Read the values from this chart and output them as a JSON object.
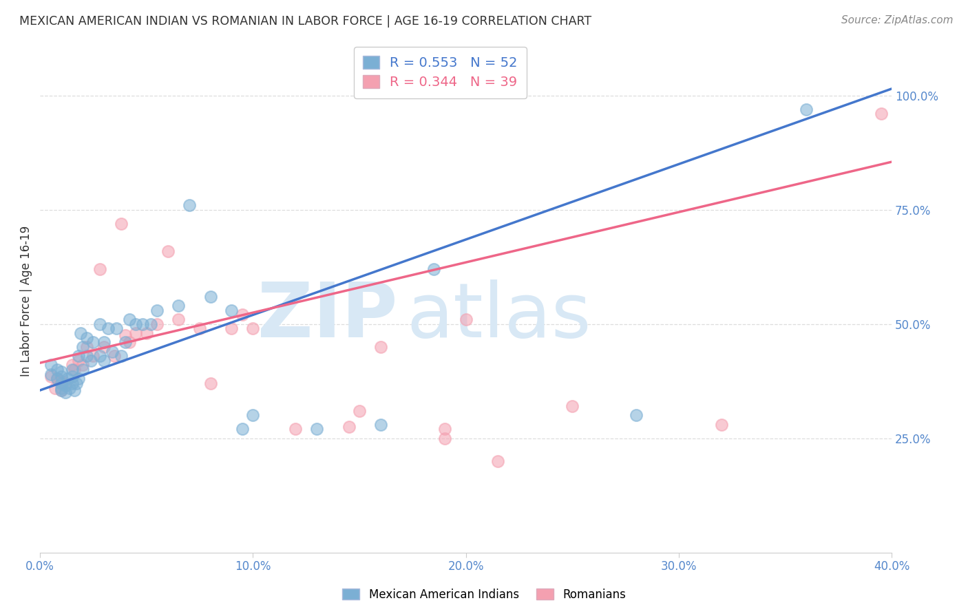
{
  "title": "MEXICAN AMERICAN INDIAN VS ROMANIAN IN LABOR FORCE | AGE 16-19 CORRELATION CHART",
  "source": "Source: ZipAtlas.com",
  "ylabel": "In Labor Force | Age 16-19",
  "xmin": 0.0,
  "xmax": 0.4,
  "ymin": 0.0,
  "ymax": 1.1,
  "yticks": [
    0.25,
    0.5,
    0.75,
    1.0
  ],
  "ytick_labels": [
    "25.0%",
    "50.0%",
    "75.0%",
    "100.0%"
  ],
  "xticks": [
    0.0,
    0.1,
    0.2,
    0.3,
    0.4
  ],
  "xtick_labels": [
    "0.0%",
    "10.0%",
    "20.0%",
    "30.0%",
    "40.0%"
  ],
  "blue_color": "#7BAFD4",
  "pink_color": "#F4A0B0",
  "blue_line_color": "#4477CC",
  "pink_line_color": "#EE6688",
  "blue_R": "0.553",
  "blue_N": "52",
  "pink_R": "0.344",
  "pink_N": "39",
  "legend_blue_label": "Mexican American Indians",
  "legend_pink_label": "Romanians",
  "watermark": "ZIPatlas",
  "blue_scatter_x": [
    0.005,
    0.005,
    0.008,
    0.008,
    0.01,
    0.01,
    0.01,
    0.01,
    0.01,
    0.012,
    0.012,
    0.013,
    0.014,
    0.015,
    0.015,
    0.015,
    0.016,
    0.017,
    0.018,
    0.018,
    0.019,
    0.02,
    0.02,
    0.022,
    0.022,
    0.024,
    0.025,
    0.028,
    0.028,
    0.03,
    0.03,
    0.032,
    0.034,
    0.036,
    0.038,
    0.04,
    0.042,
    0.045,
    0.048,
    0.052,
    0.055,
    0.065,
    0.07,
    0.08,
    0.09,
    0.095,
    0.1,
    0.13,
    0.16,
    0.185,
    0.28,
    0.36
  ],
  "blue_scatter_y": [
    0.39,
    0.41,
    0.38,
    0.4,
    0.355,
    0.36,
    0.37,
    0.385,
    0.395,
    0.35,
    0.365,
    0.38,
    0.36,
    0.37,
    0.385,
    0.4,
    0.355,
    0.37,
    0.38,
    0.43,
    0.48,
    0.4,
    0.45,
    0.43,
    0.47,
    0.42,
    0.46,
    0.43,
    0.5,
    0.42,
    0.46,
    0.49,
    0.44,
    0.49,
    0.43,
    0.46,
    0.51,
    0.5,
    0.5,
    0.5,
    0.53,
    0.54,
    0.76,
    0.56,
    0.53,
    0.27,
    0.3,
    0.27,
    0.28,
    0.62,
    0.3,
    0.97
  ],
  "pink_scatter_x": [
    0.005,
    0.007,
    0.008,
    0.01,
    0.01,
    0.012,
    0.015,
    0.016,
    0.018,
    0.02,
    0.022,
    0.025,
    0.028,
    0.03,
    0.035,
    0.038,
    0.04,
    0.042,
    0.045,
    0.05,
    0.055,
    0.06,
    0.065,
    0.075,
    0.08,
    0.09,
    0.095,
    0.1,
    0.12,
    0.145,
    0.15,
    0.16,
    0.19,
    0.19,
    0.2,
    0.215,
    0.25,
    0.32,
    0.395
  ],
  "pink_scatter_y": [
    0.385,
    0.36,
    0.38,
    0.355,
    0.375,
    0.37,
    0.41,
    0.4,
    0.42,
    0.41,
    0.45,
    0.43,
    0.62,
    0.45,
    0.43,
    0.72,
    0.475,
    0.46,
    0.48,
    0.48,
    0.5,
    0.66,
    0.51,
    0.49,
    0.37,
    0.49,
    0.52,
    0.49,
    0.27,
    0.275,
    0.31,
    0.45,
    0.27,
    0.25,
    0.51,
    0.2,
    0.32,
    0.28,
    0.96
  ],
  "axis_color": "#5588CC",
  "grid_color": "#DDDDDD",
  "title_color": "#333333",
  "source_color": "#888888",
  "watermark_color": "#D8E8F5",
  "blue_reg_intercept": 0.355,
  "blue_reg_slope": 1.65,
  "pink_reg_intercept": 0.415,
  "pink_reg_slope": 1.1
}
